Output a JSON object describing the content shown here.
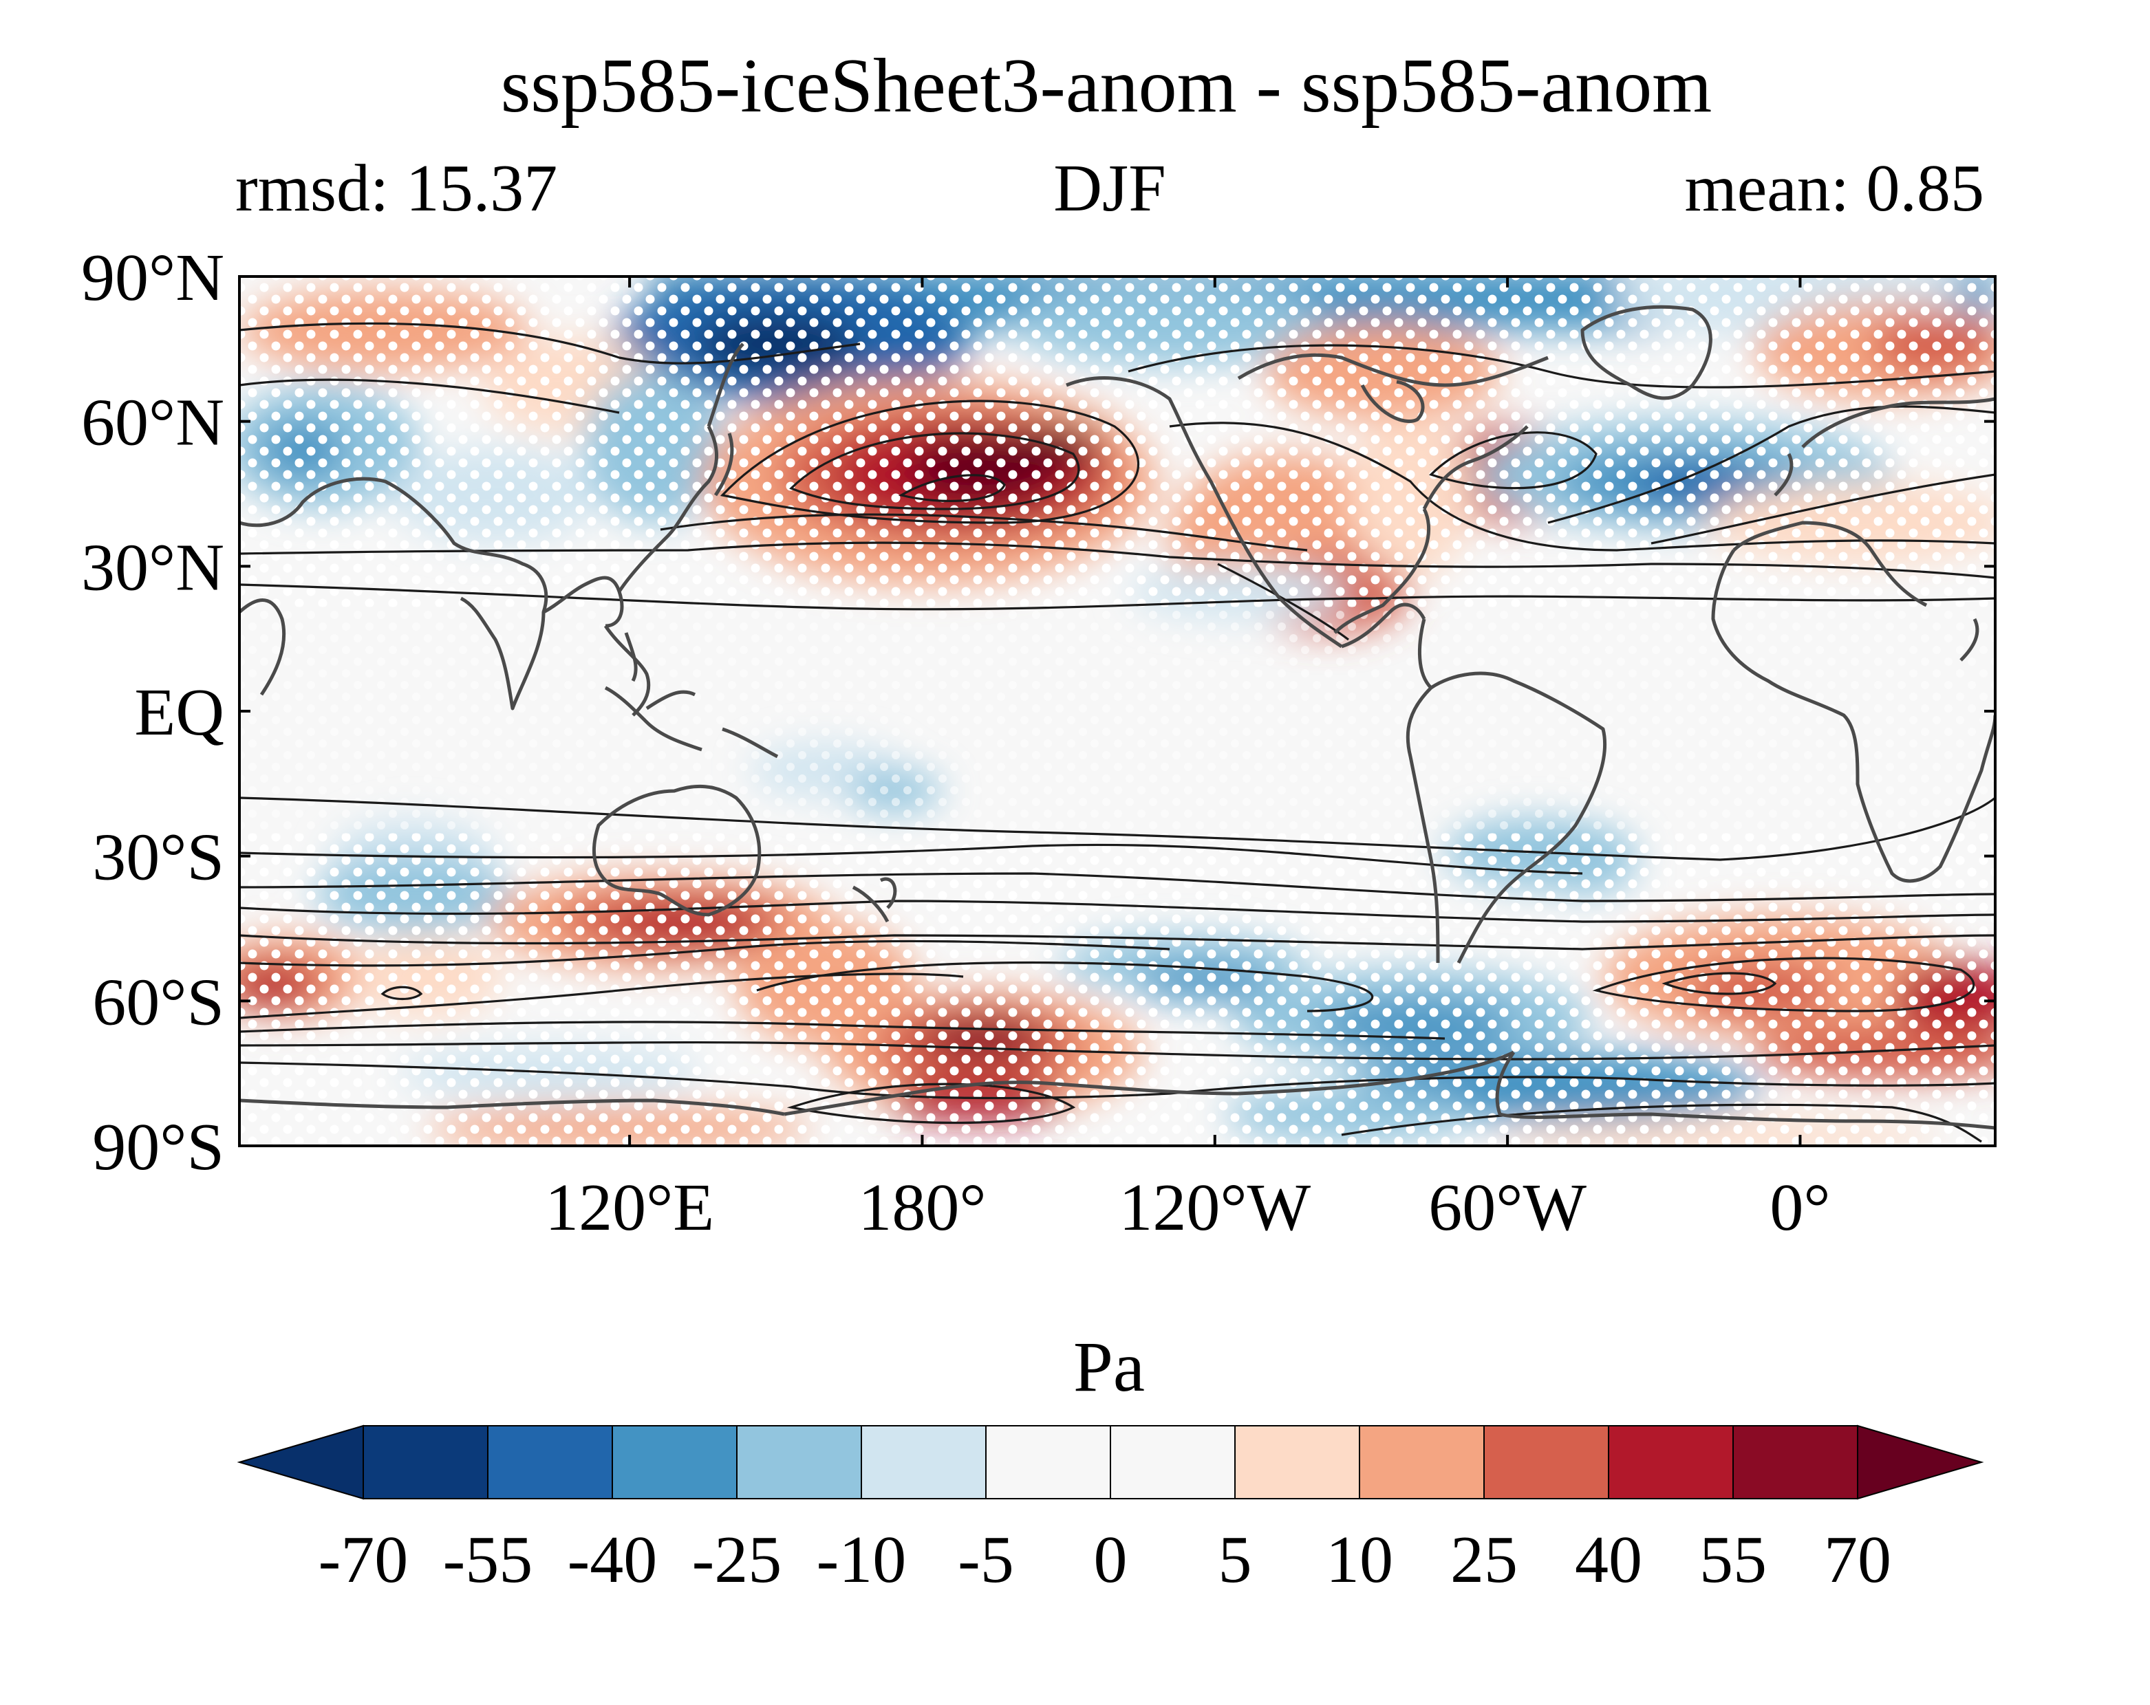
{
  "header": {
    "title": "ssp585-iceSheet3-anom - ssp585-anom",
    "left_label": "rmsd: 15.37",
    "center_label": "DJF",
    "right_label": "mean: 0.85"
  },
  "axes": {
    "lat_ticks": [
      {
        "lat": 90,
        "label": "90°N"
      },
      {
        "lat": 60,
        "label": "60°N"
      },
      {
        "lat": 30,
        "label": "30°N"
      },
      {
        "lat": 0,
        "label": "EQ"
      },
      {
        "lat": -30,
        "label": "30°S"
      },
      {
        "lat": -60,
        "label": "60°S"
      },
      {
        "lat": -90,
        "label": "90°S"
      }
    ],
    "lon_ticks": [
      {
        "lon": 120,
        "label": "120°E"
      },
      {
        "lon": 180,
        "label": "180°"
      },
      {
        "lon": 240,
        "label": "120°W"
      },
      {
        "lon": 300,
        "label": "60°W"
      },
      {
        "lon": 360,
        "label": "0°"
      }
    ],
    "lon_range": [
      40,
      400
    ],
    "lat_range": [
      -90,
      90
    ]
  },
  "colorbar": {
    "label": "Pa",
    "levels": [
      "-70",
      "-55",
      "-40",
      "-25",
      "-10",
      "-5",
      "0",
      "5",
      "10",
      "25",
      "40",
      "55",
      "70"
    ],
    "colors": [
      "#08306b",
      "#0b3a7a",
      "#2166ac",
      "#4393c3",
      "#92c5de",
      "#d1e5f0",
      "#f7f7f7",
      "#f7f7f7",
      "#fddbc7",
      "#f4a582",
      "#d6604d",
      "#b2182b",
      "#8a0b25",
      "#67001f"
    ],
    "extend": "both"
  },
  "map_colors": {
    "neutral": "#f7f7f7",
    "coastline": "#4a4a4a",
    "contour": "#1a1a1a",
    "stipple": "#ffffff"
  }
}
